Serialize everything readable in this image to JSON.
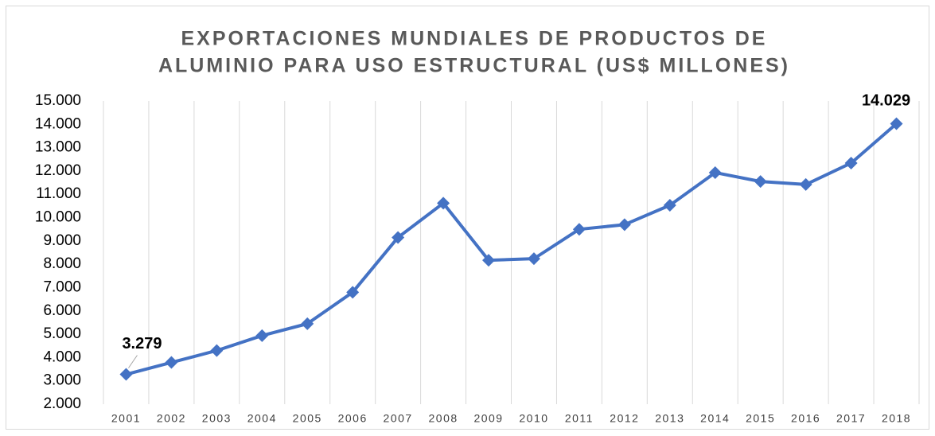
{
  "chart_data": {
    "type": "line",
    "title": [
      "EXPORTACIONES MUNDIALES DE PRODUCTOS DE",
      "ALUMINIO PARA USO ESTRUCTURAL (US$ MILLONES)"
    ],
    "categories": [
      "2001",
      "2002",
      "2003",
      "2004",
      "2005",
      "2006",
      "2007",
      "2008",
      "2009",
      "2010",
      "2011",
      "2012",
      "2013",
      "2014",
      "2015",
      "2016",
      "2017",
      "2018"
    ],
    "series": [
      {
        "name": "Exportaciones",
        "color": "#4472c4",
        "values": [
          3279,
          3790,
          4300,
          4940,
          5450,
          6800,
          9150,
          10620,
          8170,
          8240,
          9500,
          9700,
          10530,
          11930,
          11550,
          11420,
          12340,
          14029
        ],
        "value_labels": [
          "3.279",
          null,
          null,
          null,
          null,
          null,
          null,
          null,
          null,
          null,
          null,
          null,
          null,
          null,
          null,
          null,
          null,
          "14.029"
        ]
      }
    ],
    "ylim": [
      2000,
      15000
    ],
    "yticks": [
      {
        "value": 2000,
        "label": "2.000"
      },
      {
        "value": 3000,
        "label": "3.000"
      },
      {
        "value": 4000,
        "label": "4.000"
      },
      {
        "value": 5000,
        "label": "5.000"
      },
      {
        "value": 6000,
        "label": "6.000"
      },
      {
        "value": 7000,
        "label": "7.000"
      },
      {
        "value": 8000,
        "label": "8.000"
      },
      {
        "value": 9000,
        "label": "9.000"
      },
      {
        "value": 10000,
        "label": "10.000"
      },
      {
        "value": 11000,
        "label": "11.000"
      },
      {
        "value": 12000,
        "label": "12.000"
      },
      {
        "value": 13000,
        "label": "13.000"
      },
      {
        "value": 14000,
        "label": "14.000"
      },
      {
        "value": 15000,
        "label": "15.000"
      }
    ],
    "grid": "vertical"
  }
}
